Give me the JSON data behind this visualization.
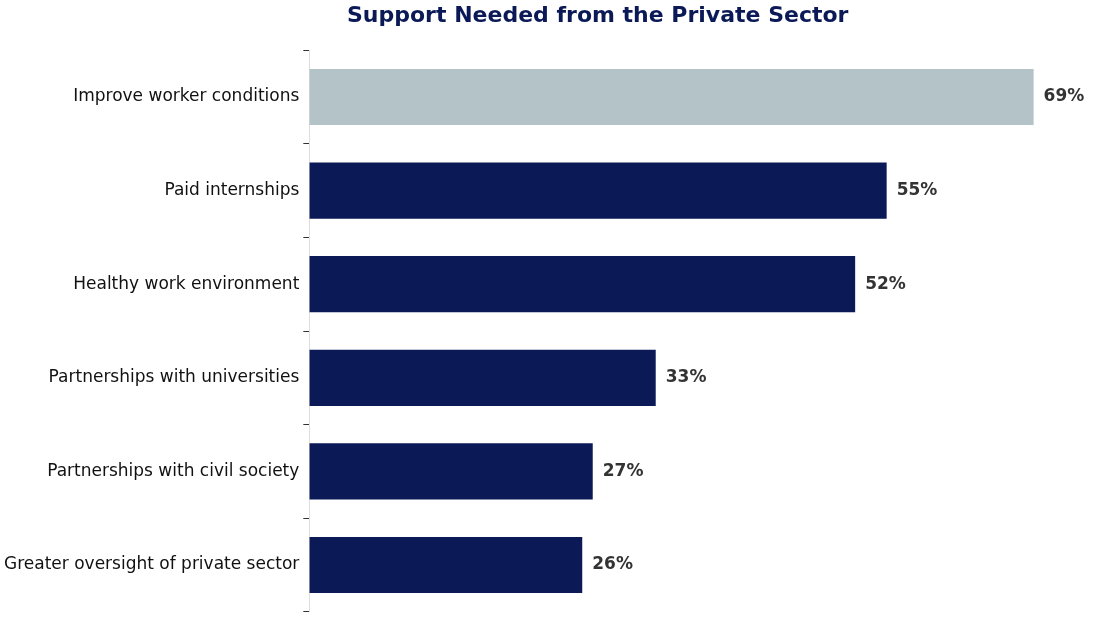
{
  "chart_data": {
    "type": "bar",
    "orientation": "horizontal",
    "title": "Support Needed from the Private Sector",
    "categories": [
      "Improve worker conditions",
      "Paid internships",
      "Healthy work environment",
      "Partnerships with universities",
      "Partnerships with civil society",
      "Greater oversight of private sector"
    ],
    "values": [
      69,
      55,
      52,
      33,
      27,
      26
    ],
    "colors": [
      "#b4c3c8",
      "#0b1a57",
      "#0b1a57",
      "#0b1a57",
      "#0b1a57",
      "#0b1a57"
    ],
    "value_labels": [
      "69%",
      "55%",
      "52%",
      "33%",
      "27%",
      "26%"
    ],
    "grid": false,
    "legend": false
  }
}
